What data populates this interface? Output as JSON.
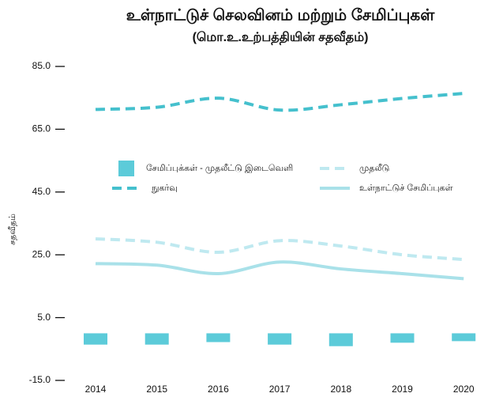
{
  "chart_data": {
    "type": "line",
    "title": "உள்நாட்டுச் செலவினம் மற்றும் சேமிப்புகள்",
    "subtitle": "(மொ.உ.உற்பத்தியின் சதவீதம்)",
    "y_label": "சதவீதம்",
    "categories": [
      "2014",
      "2015",
      "2016",
      "2017",
      "2018",
      "2019",
      "2020"
    ],
    "ylim": [
      -15,
      85
    ],
    "yticks": [
      {
        "value": 85,
        "label": "85.0"
      },
      {
        "value": 65,
        "label": "65.0"
      },
      {
        "value": 45,
        "label": "45.0"
      },
      {
        "value": 25,
        "label": "25.0"
      },
      {
        "value": 5,
        "label": "5.0"
      },
      {
        "value": -15,
        "label": "-15.0"
      }
    ],
    "series": [
      {
        "name": "சேமிப்புக்கள் - முதலீட்டு இடைவெளி",
        "type": "bar",
        "color": "#5ccbd9",
        "values": [
          -3.6,
          -3.6,
          -2.8,
          -3.6,
          -4.1,
          -3.0,
          -2.5
        ]
      },
      {
        "name": "முதலீடு",
        "type": "line",
        "dashed": true,
        "color": "#bfe9f0",
        "values": [
          30.1,
          29.0,
          25.8,
          29.5,
          27.8,
          25.0,
          23.5
        ]
      },
      {
        "name": "நுகர்வு",
        "type": "line",
        "dashed": true,
        "color": "#45c0cd",
        "values": [
          71.3,
          72.0,
          74.9,
          71.1,
          72.8,
          74.8,
          76.4
        ]
      },
      {
        "name": "உள்நாட்டுச் சேமிப்புகள்",
        "type": "line",
        "dashed": false,
        "color": "#a9e1e9",
        "values": [
          22.2,
          21.7,
          19.0,
          22.7,
          20.5,
          19.0,
          17.4
        ]
      }
    ]
  }
}
